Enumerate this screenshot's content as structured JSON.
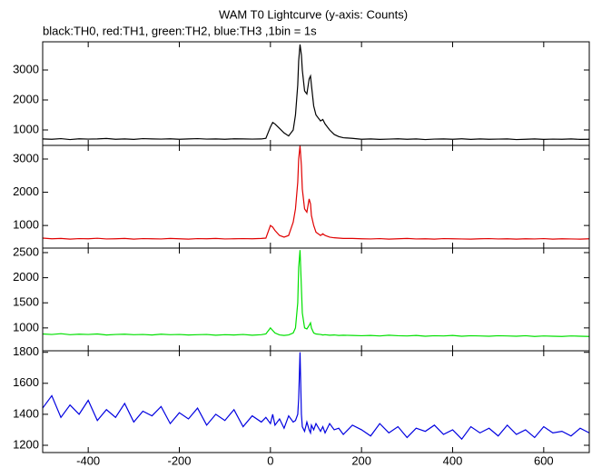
{
  "chart_data": [
    {
      "type": "line",
      "title": "WAM T0 Lightcurve (y-axis: Counts)",
      "subtitle": "black:TH0, red:TH1, green:TH2, blue:TH3 ,1bin = 1s",
      "color": "#000000",
      "x": [
        -500,
        -480,
        -460,
        -440,
        -420,
        -400,
        -380,
        -360,
        -340,
        -320,
        -300,
        -280,
        -260,
        -240,
        -220,
        -200,
        -180,
        -160,
        -140,
        -120,
        -100,
        -80,
        -60,
        -40,
        -20,
        -10,
        0,
        5,
        10,
        20,
        30,
        40,
        50,
        55,
        60,
        62,
        65,
        68,
        70,
        75,
        80,
        85,
        88,
        90,
        95,
        100,
        110,
        115,
        120,
        130,
        140,
        150,
        160,
        180,
        200,
        220,
        240,
        260,
        280,
        300,
        320,
        340,
        360,
        380,
        400,
        420,
        440,
        460,
        480,
        500,
        520,
        540,
        560,
        580,
        600,
        620,
        640,
        660,
        680,
        700
      ],
      "values": [
        700,
        690,
        710,
        680,
        705,
        695,
        700,
        715,
        690,
        700,
        685,
        710,
        700,
        695,
        705,
        690,
        700,
        710,
        695,
        700,
        690,
        705,
        700,
        695,
        700,
        720,
        1100,
        1250,
        1200,
        1050,
        900,
        800,
        1000,
        1500,
        2500,
        3300,
        3850,
        3500,
        3000,
        2300,
        2200,
        2700,
        2800,
        2500,
        1800,
        1500,
        1300,
        1350,
        1200,
        1000,
        850,
        780,
        740,
        720,
        690,
        700,
        685,
        695,
        705,
        690,
        700,
        680,
        695,
        700,
        690,
        705,
        685,
        700,
        690,
        695,
        700,
        680,
        690,
        700,
        685,
        695,
        690,
        700,
        685,
        690
      ],
      "xlim": [
        -500,
        700
      ],
      "xticks": [
        -400,
        -200,
        0,
        200,
        400,
        600
      ],
      "ylim": [
        485,
        3940
      ],
      "yticks": [
        1000,
        2000,
        3000
      ]
    },
    {
      "type": "line",
      "color": "#e00000",
      "x": [
        -500,
        -480,
        -460,
        -440,
        -420,
        -400,
        -380,
        -360,
        -340,
        -320,
        -300,
        -280,
        -260,
        -240,
        -220,
        -200,
        -180,
        -160,
        -140,
        -120,
        -100,
        -80,
        -60,
        -40,
        -20,
        -10,
        0,
        5,
        10,
        20,
        30,
        40,
        50,
        55,
        60,
        62,
        65,
        68,
        70,
        75,
        80,
        85,
        88,
        90,
        95,
        100,
        110,
        115,
        120,
        130,
        140,
        150,
        160,
        180,
        200,
        220,
        240,
        260,
        280,
        300,
        320,
        340,
        360,
        380,
        400,
        420,
        440,
        460,
        480,
        500,
        520,
        540,
        560,
        580,
        600,
        620,
        640,
        660,
        680,
        700
      ],
      "values": [
        620,
        600,
        610,
        590,
        605,
        600,
        615,
        595,
        600,
        610,
        590,
        605,
        600,
        595,
        610,
        600,
        590,
        605,
        600,
        610,
        595,
        600,
        605,
        600,
        610,
        620,
        1000,
        950,
        850,
        700,
        650,
        700,
        1100,
        1500,
        2300,
        3000,
        3400,
        2800,
        2100,
        1500,
        1400,
        1800,
        1650,
        1300,
        1000,
        800,
        700,
        750,
        700,
        650,
        630,
        620,
        610,
        610,
        600,
        595,
        605,
        590,
        600,
        610,
        595,
        600,
        590,
        605,
        600,
        595,
        590,
        600,
        605,
        595,
        600,
        590,
        600,
        595,
        605,
        590,
        600,
        595,
        590,
        600
      ],
      "xlim": [
        -500,
        700
      ],
      "xticks": [
        -400,
        -200,
        0,
        200,
        400,
        600
      ],
      "ylim": [
        320,
        3410
      ],
      "yticks": [
        1000,
        2000,
        3000
      ]
    },
    {
      "type": "line",
      "color": "#00e000",
      "x": [
        -500,
        -480,
        -460,
        -440,
        -420,
        -400,
        -380,
        -360,
        -340,
        -320,
        -300,
        -280,
        -260,
        -240,
        -220,
        -200,
        -180,
        -160,
        -140,
        -120,
        -100,
        -80,
        -60,
        -40,
        -20,
        -10,
        0,
        5,
        10,
        20,
        30,
        40,
        50,
        55,
        60,
        62,
        65,
        68,
        70,
        75,
        80,
        85,
        88,
        90,
        95,
        100,
        110,
        115,
        120,
        130,
        140,
        150,
        160,
        180,
        200,
        220,
        240,
        260,
        280,
        300,
        320,
        340,
        360,
        380,
        400,
        420,
        440,
        460,
        480,
        500,
        520,
        540,
        560,
        580,
        600,
        620,
        640,
        660,
        680,
        700
      ],
      "values": [
        880,
        870,
        885,
        865,
        875,
        870,
        880,
        860,
        870,
        875,
        865,
        870,
        860,
        875,
        865,
        870,
        860,
        865,
        870,
        855,
        865,
        860,
        870,
        855,
        865,
        880,
        1000,
        950,
        900,
        860,
        850,
        860,
        900,
        1000,
        1500,
        2200,
        2550,
        1800,
        1300,
        1000,
        980,
        1050,
        1100,
        1000,
        900,
        880,
        870,
        860,
        865,
        855,
        860,
        850,
        855,
        850,
        845,
        850,
        840,
        855,
        845,
        840,
        850,
        835,
        845,
        840,
        850,
        835,
        845,
        840,
        835,
        845,
        840,
        835,
        845,
        830,
        840,
        835,
        830,
        840,
        835,
        830
      ],
      "xlim": [
        -500,
        700
      ],
      "xticks": [
        -400,
        -200,
        0,
        200,
        400,
        600
      ],
      "ylim": [
        545,
        2590
      ],
      "yticks": [
        1000,
        1500,
        2000,
        2500
      ]
    },
    {
      "type": "line",
      "color": "#0000e0",
      "x": [
        -500,
        -480,
        -460,
        -440,
        -420,
        -400,
        -380,
        -360,
        -340,
        -320,
        -300,
        -280,
        -260,
        -240,
        -220,
        -200,
        -180,
        -160,
        -140,
        -120,
        -100,
        -80,
        -60,
        -40,
        -20,
        -10,
        0,
        5,
        10,
        20,
        30,
        40,
        50,
        55,
        60,
        62,
        65,
        68,
        70,
        75,
        80,
        85,
        88,
        90,
        95,
        100,
        110,
        115,
        120,
        130,
        140,
        150,
        160,
        180,
        200,
        220,
        240,
        260,
        280,
        300,
        320,
        340,
        360,
        380,
        400,
        420,
        440,
        460,
        480,
        500,
        520,
        540,
        560,
        580,
        600,
        620,
        640,
        660,
        680,
        700
      ],
      "values": [
        1440,
        1520,
        1380,
        1460,
        1400,
        1490,
        1360,
        1430,
        1380,
        1470,
        1350,
        1420,
        1390,
        1450,
        1340,
        1410,
        1370,
        1440,
        1330,
        1400,
        1360,
        1430,
        1320,
        1390,
        1350,
        1380,
        1340,
        1400,
        1330,
        1370,
        1310,
        1390,
        1350,
        1360,
        1400,
        1500,
        1800,
        1400,
        1320,
        1290,
        1350,
        1300,
        1280,
        1330,
        1300,
        1340,
        1290,
        1320,
        1280,
        1340,
        1300,
        1310,
        1270,
        1330,
        1300,
        1260,
        1340,
        1280,
        1320,
        1250,
        1310,
        1290,
        1330,
        1270,
        1300,
        1240,
        1320,
        1280,
        1310,
        1260,
        1330,
        1270,
        1300,
        1250,
        1320,
        1280,
        1290,
        1260,
        1310,
        1280
      ],
      "xlim": [
        -500,
        700
      ],
      "xticks": [
        -400,
        -200,
        0,
        200,
        400,
        600
      ],
      "ylim": [
        1153,
        1810
      ],
      "yticks": [
        1200,
        1400,
        1600,
        1800
      ]
    }
  ]
}
